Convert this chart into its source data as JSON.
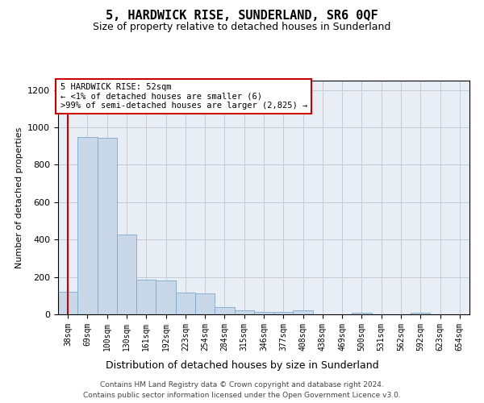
{
  "title": "5, HARDWICK RISE, SUNDERLAND, SR6 0QF",
  "subtitle": "Size of property relative to detached houses in Sunderland",
  "xlabel": "Distribution of detached houses by size in Sunderland",
  "ylabel": "Number of detached properties",
  "categories": [
    "38sqm",
    "69sqm",
    "100sqm",
    "130sqm",
    "161sqm",
    "192sqm",
    "223sqm",
    "254sqm",
    "284sqm",
    "315sqm",
    "346sqm",
    "377sqm",
    "408sqm",
    "438sqm",
    "469sqm",
    "500sqm",
    "531sqm",
    "562sqm",
    "592sqm",
    "623sqm",
    "654sqm"
  ],
  "values": [
    120,
    950,
    945,
    425,
    185,
    183,
    115,
    113,
    40,
    20,
    15,
    15,
    20,
    0,
    0,
    10,
    0,
    0,
    10,
    0,
    0
  ],
  "bar_color": "#c8d8e8",
  "bar_edge_color": "#7aaacc",
  "highlight_bar_index": 0,
  "highlight_line_color": "#cc0000",
  "ylim": [
    0,
    1250
  ],
  "yticks": [
    0,
    200,
    400,
    600,
    800,
    1000,
    1200
  ],
  "annotation_text": "5 HARDWICK RISE: 52sqm\n← <1% of detached houses are smaller (6)\n>99% of semi-detached houses are larger (2,825) →",
  "annotation_box_color": "#ffffff",
  "annotation_box_edge": "#cc0000",
  "footer_line1": "Contains HM Land Registry data © Crown copyright and database right 2024.",
  "footer_line2": "Contains public sector information licensed under the Open Government Licence v3.0.",
  "background_color": "#ffffff",
  "axes_bg_color": "#e8eef4",
  "grid_color": "#c0ccd8"
}
